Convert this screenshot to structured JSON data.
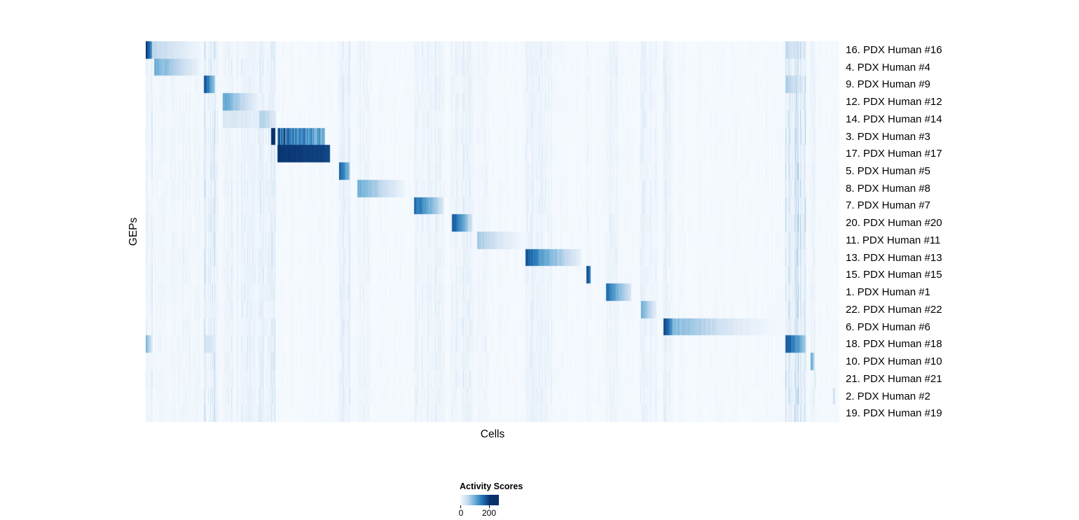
{
  "chart_data": {
    "type": "heatmap",
    "title": "",
    "xlabel": "Cells",
    "ylabel": "GEPs",
    "legend": {
      "title": "Activity Scores",
      "tick_labels": [
        "0",
        "200"
      ],
      "tick_positions": [
        0,
        0.75
      ],
      "scale_end": 0.78,
      "colormap": [
        "#f7fbff",
        "#c6dbef",
        "#6baed6",
        "#2171b5",
        "#08306b"
      ]
    },
    "background_value": 0.015,
    "stripes": [
      [
        0.0,
        0.01,
        0.06
      ],
      [
        0.013,
        0.078,
        0.035
      ],
      [
        0.082,
        0.104,
        0.09
      ],
      [
        0.111,
        0.187,
        0.07
      ],
      [
        0.277,
        0.294,
        0.06
      ],
      [
        0.305,
        0.326,
        0.04
      ],
      [
        0.385,
        0.43,
        0.05
      ],
      [
        0.44,
        0.471,
        0.06
      ],
      [
        0.477,
        0.495,
        0.035
      ],
      [
        0.546,
        0.585,
        0.05
      ],
      [
        0.634,
        0.642,
        0.07
      ],
      [
        0.663,
        0.68,
        0.04
      ],
      [
        0.713,
        0.737,
        0.05
      ],
      [
        0.745,
        0.76,
        0.06
      ],
      [
        0.922,
        0.951,
        0.13
      ],
      [
        0.957,
        0.964,
        0.06
      ]
    ],
    "rows": [
      {
        "label": "16. PDX Human #16",
        "blocks": [
          [
            0.0,
            0.009,
            0.95,
            0.55,
            0.2
          ],
          [
            0.009,
            0.078,
            0.28,
            0.03,
            0.3
          ],
          [
            0.922,
            0.95,
            0.22,
            0.08,
            0.5
          ]
        ]
      },
      {
        "label": "4. PDX Human #4",
        "blocks": [
          [
            0.012,
            0.03,
            0.5,
            0.38,
            0.2
          ],
          [
            0.03,
            0.078,
            0.38,
            0.05,
            0.25
          ]
        ]
      },
      {
        "label": "9. PDX Human #9",
        "blocks": [
          [
            0.083,
            0.1,
            0.88,
            0.35,
            0.2
          ],
          [
            0.922,
            0.95,
            0.3,
            0.1,
            0.5
          ]
        ]
      },
      {
        "label": "12. PDX Human #12",
        "blocks": [
          [
            0.111,
            0.135,
            0.55,
            0.3,
            0.25
          ],
          [
            0.135,
            0.163,
            0.3,
            0.05,
            0.3
          ]
        ]
      },
      {
        "label": "14. PDX Human #14",
        "blocks": [
          [
            0.111,
            0.163,
            0.16,
            0.09,
            0.5
          ],
          [
            0.163,
            0.187,
            0.35,
            0.12,
            0.5
          ]
        ]
      },
      {
        "label": "3. PDX Human #3",
        "blocks": [
          [
            0.18,
            0.186,
            1.0,
            1.0,
            0.05
          ],
          [
            0.189,
            0.258,
            0.8,
            0.48,
            0.65
          ]
        ]
      },
      {
        "label": "17. PDX Human #17",
        "blocks": [
          [
            0.189,
            0.265,
            0.98,
            0.92,
            0.04
          ]
        ]
      },
      {
        "label": "5. PDX Human #5",
        "blocks": [
          [
            0.278,
            0.293,
            0.88,
            0.4,
            0.2
          ]
        ]
      },
      {
        "label": "8. PDX Human #8",
        "blocks": [
          [
            0.305,
            0.34,
            0.5,
            0.25,
            0.25
          ],
          [
            0.34,
            0.373,
            0.25,
            0.04,
            0.3
          ]
        ]
      },
      {
        "label": "7. PDX Human #7",
        "blocks": [
          [
            0.386,
            0.408,
            0.8,
            0.5,
            0.2
          ],
          [
            0.408,
            0.429,
            0.5,
            0.15,
            0.25
          ]
        ]
      },
      {
        "label": "20. PDX Human #20",
        "blocks": [
          [
            0.441,
            0.456,
            0.88,
            0.55,
            0.2
          ],
          [
            0.456,
            0.47,
            0.55,
            0.18,
            0.25
          ]
        ]
      },
      {
        "label": "11. PDX Human #11",
        "blocks": [
          [
            0.477,
            0.51,
            0.35,
            0.15,
            0.3
          ],
          [
            0.51,
            0.543,
            0.15,
            0.03,
            0.3
          ]
        ]
      },
      {
        "label": "13. PDX Human #13",
        "blocks": [
          [
            0.547,
            0.57,
            0.88,
            0.55,
            0.2
          ],
          [
            0.57,
            0.627,
            0.55,
            0.08,
            0.25
          ]
        ]
      },
      {
        "label": "15. PDX Human #15",
        "blocks": [
          [
            0.635,
            0.641,
            0.92,
            0.7,
            0.1
          ]
        ]
      },
      {
        "label": "1. PDX Human #1",
        "blocks": [
          [
            0.663,
            0.68,
            0.78,
            0.45,
            0.2
          ],
          [
            0.68,
            0.7,
            0.45,
            0.15,
            0.25
          ]
        ]
      },
      {
        "label": "22. PDX Human #22",
        "blocks": [
          [
            0.714,
            0.724,
            0.55,
            0.3,
            0.25
          ],
          [
            0.724,
            0.736,
            0.3,
            0.1,
            0.3
          ]
        ]
      },
      {
        "label": "6. PDX Human #6",
        "blocks": [
          [
            0.746,
            0.758,
            0.95,
            0.6,
            0.1
          ],
          [
            0.758,
            0.85,
            0.45,
            0.12,
            0.35
          ],
          [
            0.85,
            0.912,
            0.12,
            0.02,
            0.4
          ]
        ]
      },
      {
        "label": "18. PDX Human #18",
        "blocks": [
          [
            0.0,
            0.008,
            0.45,
            0.2,
            0.3
          ],
          [
            0.083,
            0.1,
            0.22,
            0.08,
            0.4
          ],
          [
            0.922,
            0.95,
            0.9,
            0.35,
            0.25
          ]
        ]
      },
      {
        "label": "10. PDX Human #10",
        "blocks": [
          [
            0.958,
            0.963,
            0.55,
            0.3,
            0.2
          ]
        ]
      },
      {
        "label": "21. PDX Human #21",
        "blocks": [
          [
            0.963,
            0.966,
            0.15,
            0.08,
            0.3
          ]
        ]
      },
      {
        "label": "2. PDX Human #2",
        "blocks": [
          [
            0.99,
            0.993,
            0.3,
            0.15,
            0.2
          ]
        ]
      },
      {
        "label": "19. PDX Human #19",
        "blocks": []
      }
    ]
  }
}
